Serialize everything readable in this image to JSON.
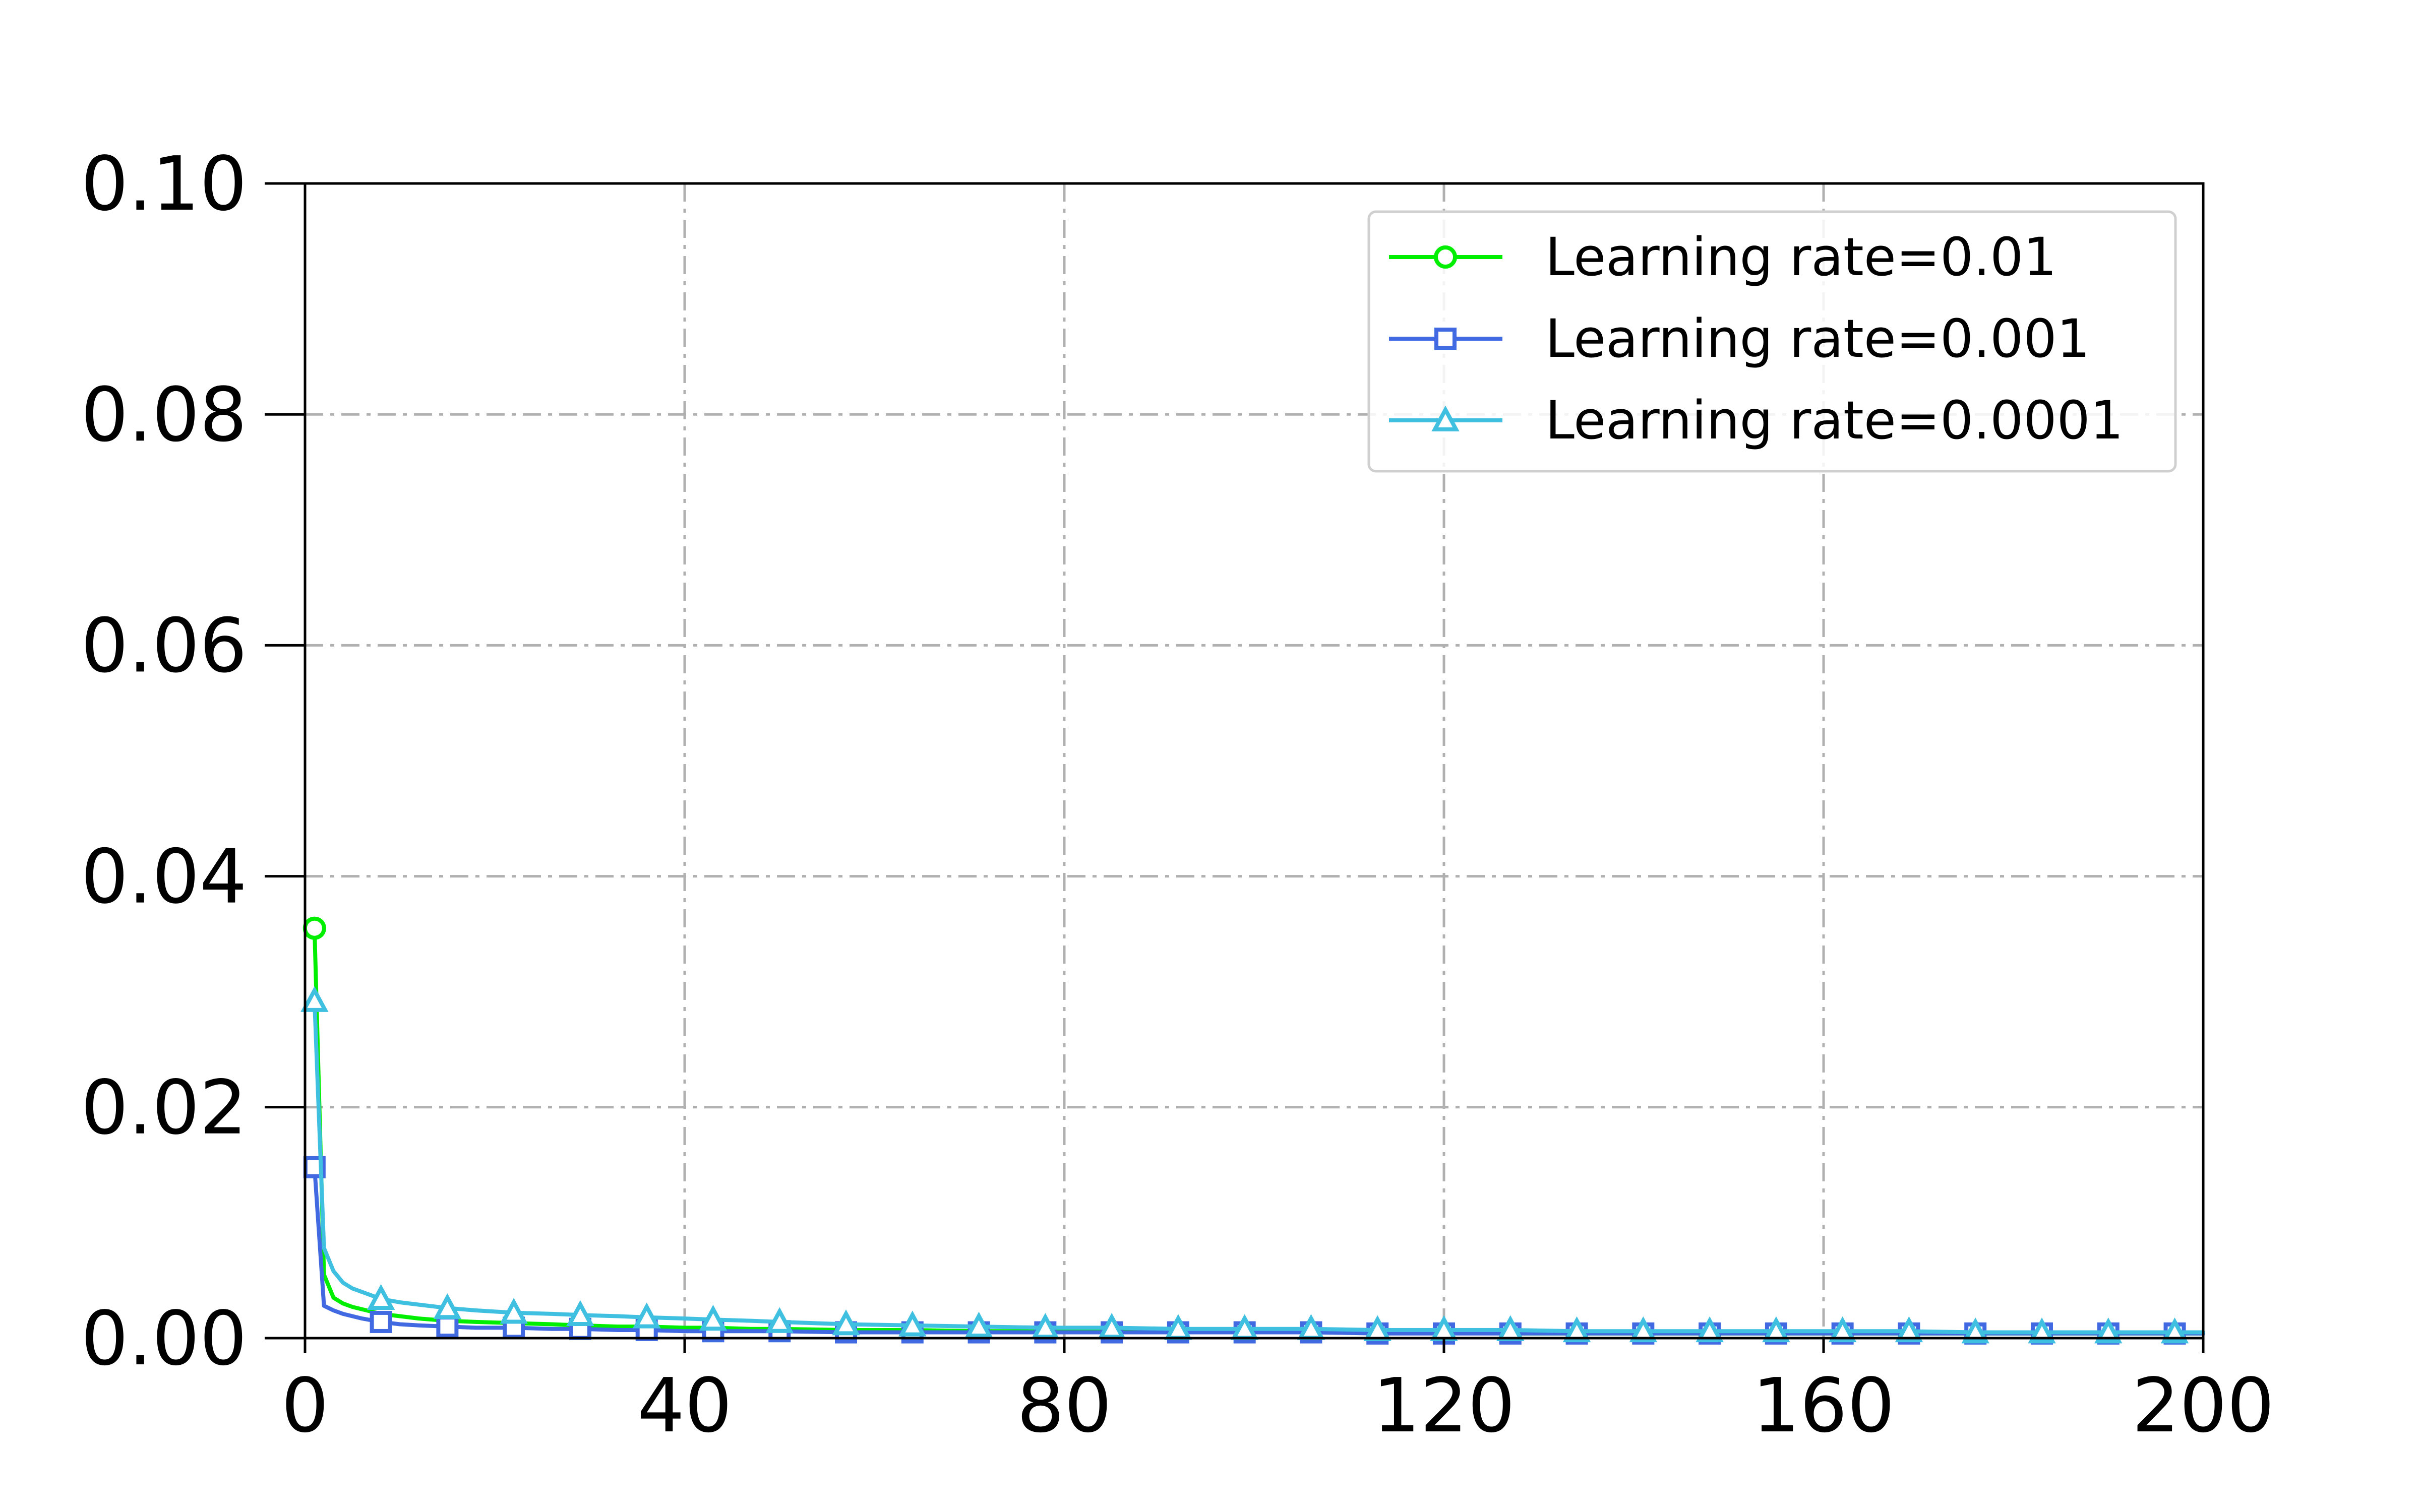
{
  "chart_data": {
    "type": "line",
    "title": "",
    "xlabel": "",
    "ylabel": "",
    "xlim": [
      0,
      200
    ],
    "ylim": [
      0,
      0.1
    ],
    "xticks": [
      "0",
      "40",
      "80",
      "120",
      "160",
      "200"
    ],
    "yticks": [
      "0.00",
      "0.02",
      "0.04",
      "0.06",
      "0.08",
      "0.10"
    ],
    "grid": true,
    "grid_style": "dash-dot",
    "legend_position": "top-right",
    "x": [
      1,
      2,
      3,
      4,
      5,
      6,
      8,
      10,
      12,
      15,
      18,
      22,
      26,
      29,
      33,
      36,
      40,
      43,
      47,
      50,
      57,
      64,
      71,
      78,
      85,
      92,
      99,
      106,
      113,
      120,
      127,
      134,
      141,
      148,
      155,
      162,
      169,
      176,
      183,
      190,
      197,
      200
    ],
    "series": [
      {
        "name": "Learning rate=0.01",
        "color": "#00ee00",
        "marker": "circle",
        "marker_x": [
          1
        ],
        "values": [
          0.0355,
          0.0055,
          0.0035,
          0.003,
          0.0027,
          0.0025,
          0.0021,
          0.0019,
          0.0017,
          0.0015,
          0.0014,
          0.0013,
          0.0012,
          0.0011,
          0.001,
          0.001,
          0.0009,
          0.0009,
          0.0008,
          0.0008,
          0.0007,
          0.0007,
          0.0006,
          0.0006,
          0.0006,
          0.0005,
          0.0005,
          0.0005,
          0.0005,
          0.0005,
          0.0004,
          0.0004,
          0.0004,
          0.0004,
          0.0004,
          0.0004,
          0.0004,
          0.0004,
          0.0004,
          0.0004,
          0.0004,
          0.0004
        ]
      },
      {
        "name": "Learning rate=0.001",
        "color": "#4169e1",
        "marker": "square",
        "marker_x": [
          1,
          8,
          15,
          22,
          29,
          36,
          43,
          50,
          57,
          64,
          71,
          78,
          85,
          92,
          99,
          106,
          113,
          120,
          127,
          134,
          141,
          148,
          155,
          162,
          169,
          176,
          183,
          190,
          197
        ],
        "values": [
          0.0148,
          0.0028,
          0.0024,
          0.0021,
          0.0019,
          0.0017,
          0.0014,
          0.0012,
          0.0011,
          0.001,
          0.0009,
          0.0009,
          0.0008,
          0.0008,
          0.0007,
          0.0007,
          0.0006,
          0.0006,
          0.0006,
          0.0006,
          0.0005,
          0.0005,
          0.0005,
          0.0005,
          0.0005,
          0.0005,
          0.0005,
          0.0005,
          0.0004,
          0.0004,
          0.0004,
          0.0004,
          0.0004,
          0.0004,
          0.0004,
          0.0004,
          0.0004,
          0.0004,
          0.0004,
          0.0004,
          0.0004,
          0.0004
        ]
      },
      {
        "name": "Learning rate=0.0001",
        "color": "#40c0e0",
        "marker": "triangle",
        "marker_x": [
          1,
          8,
          15,
          22,
          29,
          36,
          43,
          50,
          57,
          64,
          71,
          78,
          85,
          92,
          99,
          106,
          113,
          120,
          127,
          134,
          141,
          148,
          155,
          162,
          169,
          176,
          183,
          190,
          197
        ],
        "values": [
          0.0292,
          0.0078,
          0.0058,
          0.0048,
          0.0043,
          0.004,
          0.0034,
          0.0031,
          0.0029,
          0.0026,
          0.0024,
          0.0022,
          0.0021,
          0.002,
          0.0019,
          0.0018,
          0.0017,
          0.0016,
          0.0015,
          0.0014,
          0.0012,
          0.0011,
          0.001,
          0.0009,
          0.0009,
          0.0008,
          0.0008,
          0.0008,
          0.0007,
          0.0007,
          0.0007,
          0.0006,
          0.0006,
          0.0006,
          0.0006,
          0.0006,
          0.0006,
          0.0005,
          0.0005,
          0.0005,
          0.0005,
          0.0005
        ]
      }
    ]
  }
}
